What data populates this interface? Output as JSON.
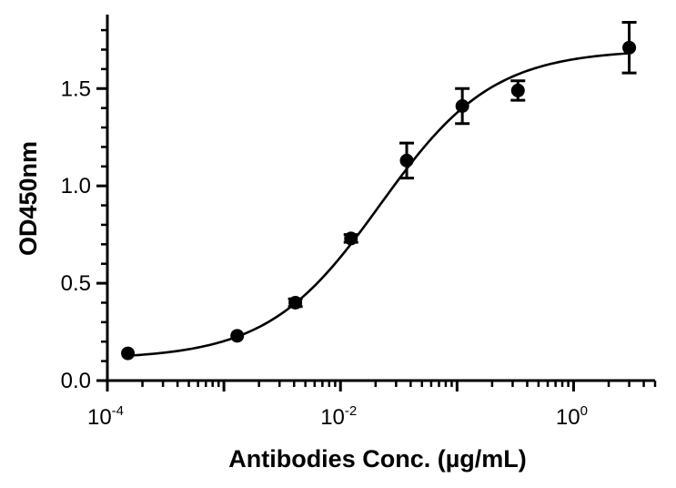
{
  "chart_data": {
    "type": "scatter",
    "xlabel": "Antibodies Conc. (µg/mL)",
    "ylabel": "OD450nm",
    "x_scale": "log10",
    "xlim": [
      0.0001,
      5
    ],
    "ylim": [
      0,
      1.88
    ],
    "y_ticks": [
      "0.0",
      "0.5",
      "1.0",
      "1.5"
    ],
    "y_tick_values": [
      0,
      0.5,
      1.0,
      1.5
    ],
    "x_ticks": [
      {
        "base": "10",
        "exp": "-4",
        "value": 0.0001
      },
      {
        "base": "10",
        "exp": "-2",
        "value": 0.01
      },
      {
        "base": "10",
        "exp": "0",
        "value": 1
      }
    ],
    "grid": false,
    "legend": "none",
    "points": [
      {
        "x": 0.00015,
        "y": 0.14
      },
      {
        "x": 0.0013,
        "y": 0.23
      },
      {
        "x": 0.0041,
        "y": 0.4,
        "err": 0.02
      },
      {
        "x": 0.0123,
        "y": 0.73,
        "err": 0.02
      },
      {
        "x": 0.037,
        "y": 1.13,
        "err": 0.09
      },
      {
        "x": 0.111,
        "y": 1.41,
        "err": 0.09
      },
      {
        "x": 0.333,
        "y": 1.49,
        "err": 0.05
      },
      {
        "x": 3.0,
        "y": 1.71,
        "err": 0.13
      }
    ],
    "fit": {
      "model": "4PL",
      "bottom": 0.11,
      "top": 1.7,
      "ec50": 0.022,
      "hill": 0.9
    }
  }
}
